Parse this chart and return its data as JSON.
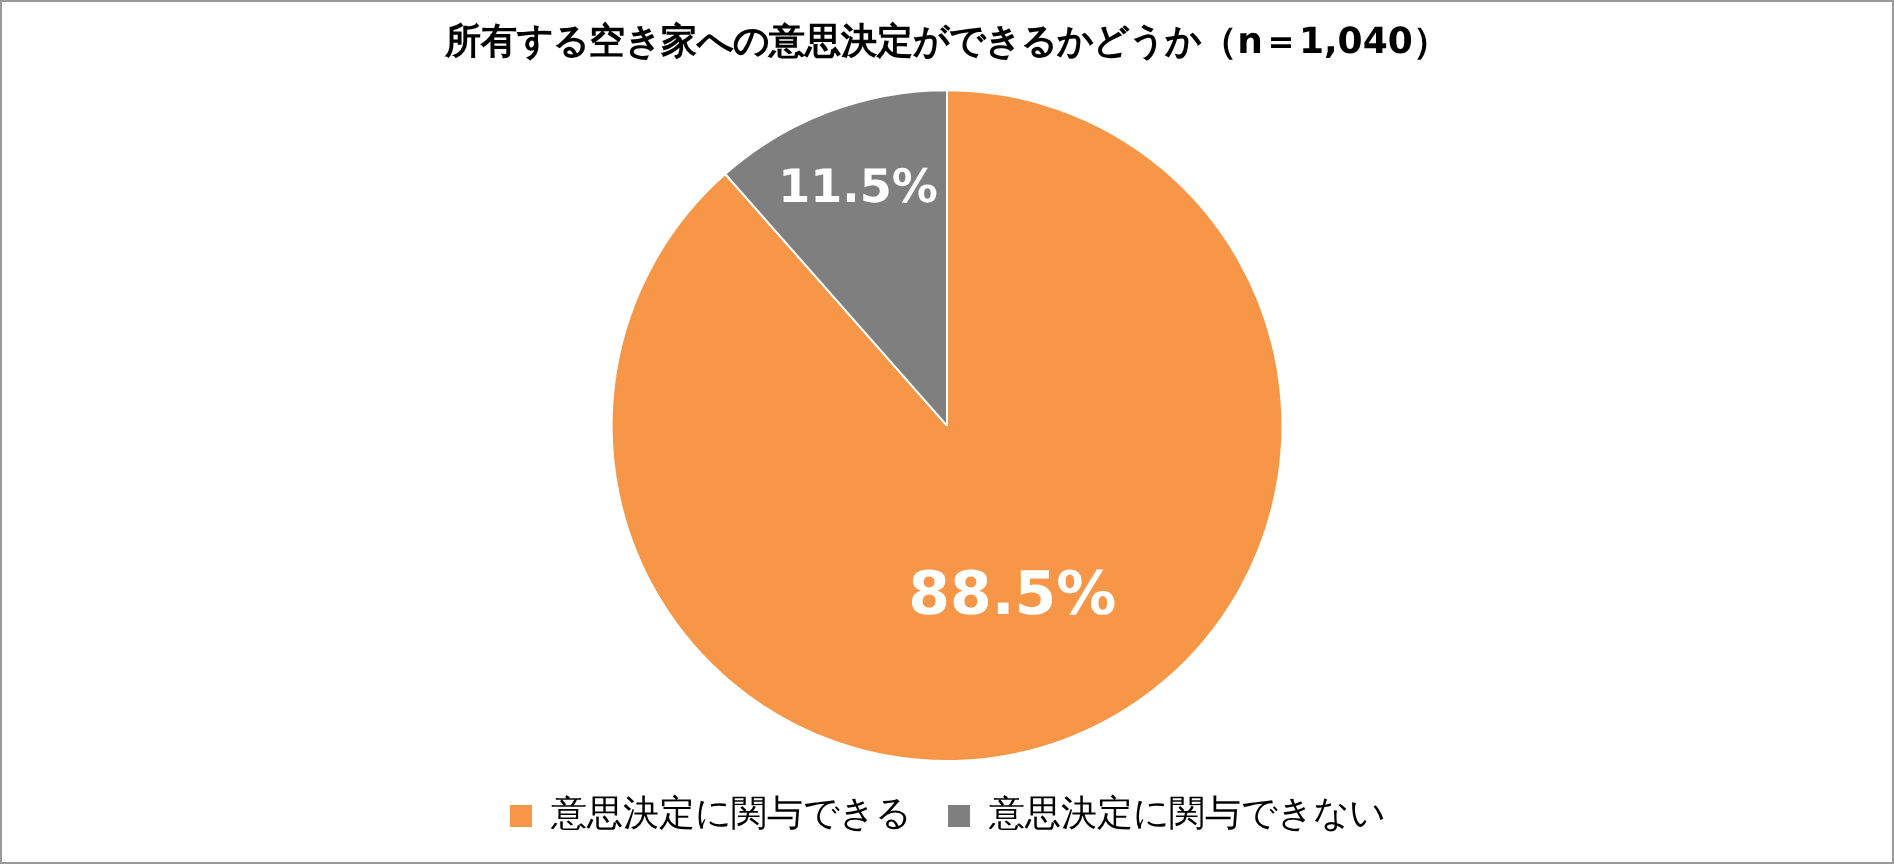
{
  "chart_data": {
    "type": "pie",
    "title": "所有する空き家への意思決定ができるかどうか（n＝1,040）",
    "categories": [
      "意思決定に関与できる",
      "意思決定に関与できない"
    ],
    "values": [
      88.5,
      11.5
    ],
    "colors": [
      "#f79646",
      "#7f7f7f"
    ],
    "value_labels": [
      "88.5%",
      "11.5%"
    ],
    "legend": "bottom"
  }
}
